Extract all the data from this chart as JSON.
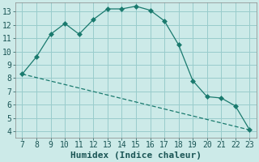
{
  "title": "",
  "xlabel": "Humidex (Indice chaleur)",
  "ylabel": "",
  "background_color": "#cceae8",
  "grid_color": "#99cccc",
  "line_color": "#1a7a6e",
  "line1_x": [
    7,
    8,
    9,
    10,
    11,
    12,
    13,
    14,
    15,
    16,
    17,
    18,
    19,
    20,
    21,
    22,
    23
  ],
  "line1_y": [
    8.3,
    9.6,
    11.3,
    12.1,
    11.3,
    12.4,
    13.2,
    13.2,
    13.4,
    13.1,
    12.3,
    10.5,
    7.8,
    6.6,
    6.5,
    5.9,
    4.1
  ],
  "line2_x": [
    7,
    23
  ],
  "line2_y": [
    8.3,
    4.1
  ],
  "xlim": [
    6.5,
    23.5
  ],
  "ylim": [
    3.5,
    13.7
  ],
  "xticks": [
    7,
    8,
    9,
    10,
    11,
    12,
    13,
    14,
    15,
    16,
    17,
    18,
    19,
    20,
    21,
    22,
    23
  ],
  "yticks": [
    4,
    5,
    6,
    7,
    8,
    9,
    10,
    11,
    12,
    13
  ],
  "tick_fontsize": 7,
  "xlabel_fontsize": 8,
  "marker_size": 3
}
